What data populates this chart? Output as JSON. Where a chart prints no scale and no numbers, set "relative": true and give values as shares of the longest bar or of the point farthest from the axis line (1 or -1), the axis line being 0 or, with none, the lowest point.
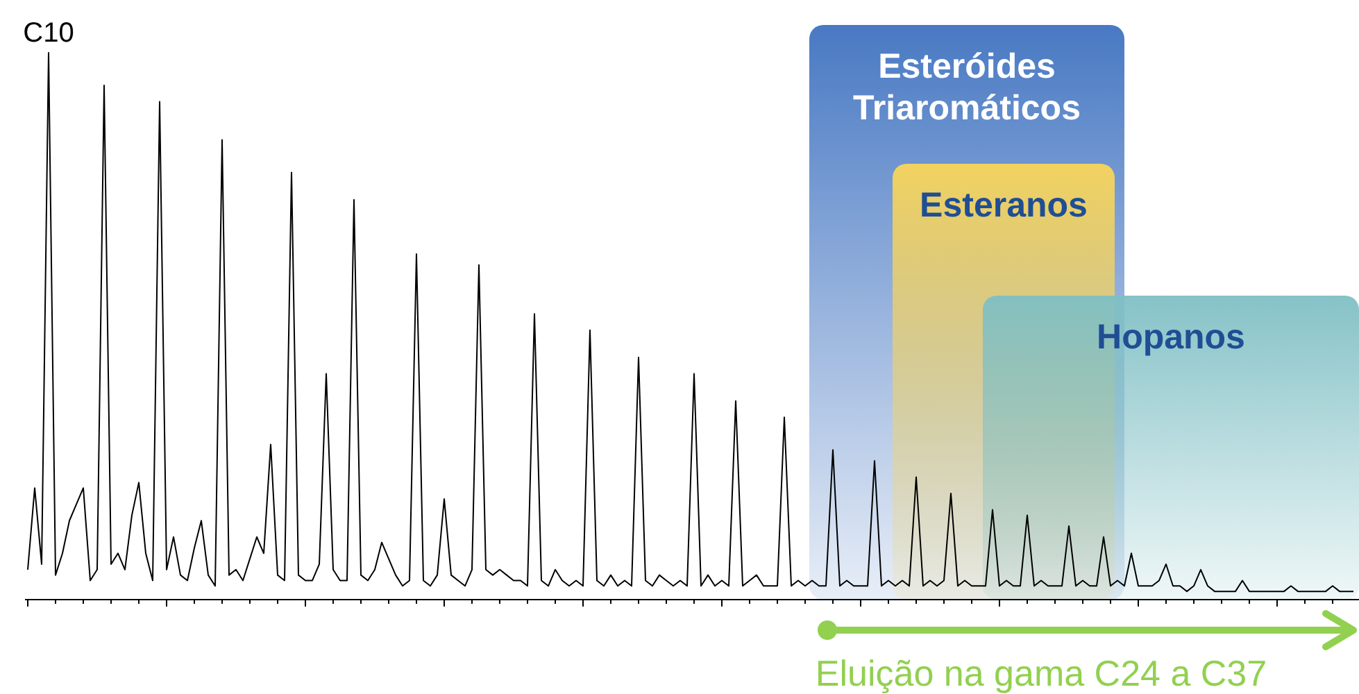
{
  "chart_data": {
    "type": "line",
    "relative": true,
    "line_style": "solid",
    "categories": [
      null,
      null,
      null,
      null,
      null,
      null,
      null,
      null,
      null,
      null,
      null,
      null,
      null,
      null,
      null,
      null,
      null,
      null,
      null,
      null,
      null,
      null,
      null,
      null,
      null,
      null,
      null,
      null,
      null,
      null,
      null,
      null,
      null,
      null,
      null,
      null,
      null,
      null,
      null,
      null,
      null,
      null,
      null,
      null,
      null,
      null,
      null,
      null,
      null,
      null,
      null,
      null,
      null,
      null,
      null,
      null,
      null,
      null,
      null,
      null,
      null,
      null,
      null,
      null,
      null,
      null,
      null,
      null,
      null,
      null,
      null,
      null,
      null,
      null,
      null,
      null,
      null,
      null,
      null,
      null,
      null,
      null,
      null,
      null,
      null,
      null,
      null,
      null,
      null,
      null,
      null,
      null,
      null,
      null,
      null,
      null,
      null,
      null,
      null,
      null,
      null,
      null,
      null,
      null,
      null,
      null,
      null,
      null,
      null,
      null,
      null,
      null,
      null,
      null,
      null,
      null,
      null,
      null,
      null,
      null,
      null,
      null,
      null,
      null,
      null,
      null,
      null,
      null,
      null,
      null,
      null,
      null,
      null,
      null,
      null,
      null,
      null,
      null,
      null,
      null,
      null,
      null,
      null,
      null,
      null,
      null,
      null,
      null,
      null,
      null,
      null,
      null,
      null,
      null,
      null,
      null,
      null,
      null,
      null,
      null,
      null,
      null,
      null,
      null,
      null,
      null,
      null,
      null,
      null,
      null,
      null,
      null,
      null,
      null,
      null,
      null,
      null,
      null,
      null,
      null,
      null,
      null,
      null,
      null,
      null,
      null,
      null,
      null,
      null,
      null,
      null,
      null
    ],
    "series": [
      {
        "color": "#000000",
        "values": [
          0.05,
          0.2,
          0.06,
          1.0,
          0.04,
          0.08,
          0.14,
          0.17,
          0.2,
          0.03,
          0.05,
          0.94,
          0.06,
          0.08,
          0.05,
          0.15,
          0.21,
          0.08,
          0.03,
          0.91,
          0.05,
          0.11,
          0.04,
          0.03,
          0.09,
          0.14,
          0.04,
          0.02,
          0.84,
          0.04,
          0.05,
          0.03,
          0.07,
          0.11,
          0.08,
          0.28,
          0.04,
          0.03,
          0.78,
          0.04,
          0.03,
          0.03,
          0.06,
          0.41,
          0.05,
          0.03,
          0.03,
          0.73,
          0.04,
          0.03,
          0.05,
          0.1,
          0.07,
          0.04,
          0.02,
          0.03,
          0.63,
          0.03,
          0.02,
          0.04,
          0.18,
          0.04,
          0.03,
          0.02,
          0.05,
          0.61,
          0.05,
          0.04,
          0.05,
          0.04,
          0.03,
          0.03,
          0.02,
          0.52,
          0.03,
          0.02,
          0.05,
          0.03,
          0.02,
          0.03,
          0.02,
          0.49,
          0.03,
          0.02,
          0.04,
          0.02,
          0.03,
          0.02,
          0.44,
          0.03,
          0.02,
          0.04,
          0.03,
          0.02,
          0.03,
          0.02,
          0.41,
          0.02,
          0.04,
          0.02,
          0.03,
          0.02,
          0.36,
          0.02,
          0.03,
          0.04,
          0.02,
          0.02,
          0.02,
          0.33,
          0.02,
          0.03,
          0.02,
          0.03,
          0.02,
          0.02,
          0.27,
          0.02,
          0.03,
          0.02,
          0.02,
          0.02,
          0.25,
          0.02,
          0.03,
          0.02,
          0.03,
          0.02,
          0.22,
          0.02,
          0.03,
          0.02,
          0.03,
          0.19,
          0.02,
          0.03,
          0.02,
          0.02,
          0.02,
          0.16,
          0.02,
          0.03,
          0.02,
          0.02,
          0.15,
          0.02,
          0.03,
          0.02,
          0.02,
          0.02,
          0.13,
          0.02,
          0.03,
          0.02,
          0.02,
          0.11,
          0.02,
          0.03,
          0.02,
          0.08,
          0.02,
          0.02,
          0.02,
          0.03,
          0.06,
          0.02,
          0.02,
          0.01,
          0.02,
          0.05,
          0.02,
          0.01,
          0.01,
          0.01,
          0.01,
          0.03,
          0.01,
          0.01,
          0.01,
          0.01,
          0.01,
          0.01,
          0.02,
          0.01,
          0.01,
          0.01,
          0.01,
          0.01,
          0.02,
          0.01,
          0.01,
          0.01
        ]
      }
    ],
    "annotations": [
      {
        "text": "C10",
        "y": 1.0
      },
      "Esteróides Triaromáticos",
      "Esteranos",
      "Hopanos",
      "Eluição na gama C24 a C37"
    ]
  }
}
